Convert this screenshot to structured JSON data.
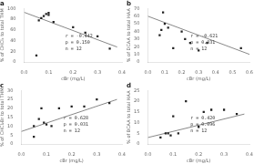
{
  "chart_data": [
    {
      "type": "scatter",
      "title": "a",
      "xlabel": "cBr (mg/L)",
      "ylabel": "% of CHCl₃ to total THM",
      "annotation": "r = -0.442\np = 0.150\nn = 12",
      "xlim": [
        0,
        0.4
      ],
      "ylim": [
        0,
        100
      ],
      "xticks": [
        {
          "value": 0,
          "label": "0.0"
        },
        0.1,
        0.2,
        0.3,
        0.4
      ],
      "yticks": [
        0,
        20,
        40,
        60,
        80,
        100
      ],
      "grid": false,
      "series": [
        {
          "type": "scatter",
          "color": "#222222",
          "marker": "square",
          "x": [
            0.05,
            0.06,
            0.07,
            0.08,
            0.09,
            0.1,
            0.1,
            0.12,
            0.2,
            0.25,
            0.3,
            0.35
          ],
          "values": [
            12,
            78,
            82,
            86,
            90,
            88,
            92,
            75,
            65,
            55,
            48,
            25
          ]
        },
        {
          "type": "line",
          "color": "#888888",
          "line_style": "solid",
          "x": [
            0.0,
            0.38
          ],
          "values": [
            93,
            28
          ]
        }
      ]
    },
    {
      "type": "scatter",
      "title": "b",
      "xlabel": "cBr (mg/L)",
      "ylabel": "% of DCAA to total HAA",
      "annotation": "r = -0.621\np = 0.031\nn = 12",
      "xlim": [
        0,
        0.6
      ],
      "ylim": [
        0,
        70
      ],
      "xticks": [
        {
          "value": 0,
          "label": "0.0"
        },
        0.1,
        0.2,
        0.3,
        0.4,
        0.5,
        0.6
      ],
      "yticks": [
        0,
        10,
        20,
        30,
        40,
        50,
        60,
        70
      ],
      "grid": false,
      "series": [
        {
          "type": "scatter",
          "color": "#222222",
          "marker": "square",
          "x": [
            0.07,
            0.08,
            0.09,
            0.1,
            0.12,
            0.15,
            0.2,
            0.22,
            0.25,
            0.3,
            0.35,
            0.55
          ],
          "values": [
            35,
            42,
            65,
            50,
            45,
            18,
            40,
            30,
            25,
            15,
            25,
            18
          ]
        },
        {
          "type": "line",
          "color": "#888888",
          "line_style": "solid",
          "x": [
            0.0,
            0.6
          ],
          "values": [
            60,
            10
          ]
        }
      ]
    },
    {
      "type": "scatter",
      "title": "c",
      "xlabel": "cBr (mg/L)",
      "ylabel": "% of CHCl₂Br to total THM",
      "annotation": "r = 0.628\np = 0.031\nn = 12",
      "xlim": [
        0,
        0.4
      ],
      "ylim": [
        0,
        30
      ],
      "xticks": [
        {
          "value": 0,
          "label": "0.0"
        },
        0.1,
        0.2,
        0.3,
        0.4
      ],
      "yticks": [
        0,
        5,
        10,
        15,
        20,
        25,
        30
      ],
      "grid": false,
      "series": [
        {
          "type": "scatter",
          "color": "#222222",
          "marker": "square",
          "x": [
            0.05,
            0.05,
            0.07,
            0.08,
            0.09,
            0.1,
            0.12,
            0.15,
            0.2,
            0.25,
            0.3,
            0.35
          ],
          "values": [
            10,
            4,
            14,
            20,
            12,
            11,
            10,
            20,
            21,
            21,
            25,
            23
          ]
        },
        {
          "type": "line",
          "color": "#888888",
          "line_style": "solid",
          "x": [
            0.0,
            0.38
          ],
          "values": [
            7,
            25
          ]
        }
      ]
    },
    {
      "type": "scatter",
      "title": "d",
      "xlabel": "cBr (mg/L)",
      "ylabel": "% of BCAA to total HAA",
      "annotation": "r = 0.420\np = 0.096\nn = 12",
      "xlim": [
        0,
        0.4
      ],
      "ylim": [
        0,
        25
      ],
      "xticks": [
        {
          "value": 0,
          "label": "0.0"
        },
        0.1,
        0.2,
        0.3,
        0.4
      ],
      "yticks": [
        0,
        5,
        10,
        15,
        20,
        25
      ],
      "grid": false,
      "series": [
        {
          "type": "scatter",
          "color": "#222222",
          "marker": "square",
          "x": [
            0.05,
            0.07,
            0.08,
            0.09,
            0.1,
            0.12,
            0.15,
            0.2,
            0.22,
            0.25,
            0.3,
            0.35
          ],
          "values": [
            3,
            5,
            5,
            4,
            13,
            5,
            20,
            8,
            15,
            16,
            16,
            14
          ]
        },
        {
          "type": "line",
          "color": "#888888",
          "line_style": "solid",
          "x": [
            0.0,
            0.38
          ],
          "values": [
            3,
            14
          ]
        }
      ]
    }
  ]
}
